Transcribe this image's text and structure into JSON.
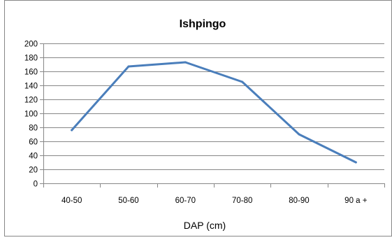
{
  "chart_data": {
    "type": "line",
    "title": "Ishpingo",
    "xlabel": "DAP (cm)",
    "ylabel": "",
    "categories": [
      "40-50",
      "50-60",
      "60-70",
      "70-80",
      "80-90",
      "90 a +"
    ],
    "series": [
      {
        "values": [
          76,
          167,
          173,
          145,
          70,
          30
        ],
        "color": "#4a7ebb"
      }
    ],
    "ylim": [
      0,
      200
    ],
    "yticks": [
      "0",
      "20",
      "40",
      "60",
      "80",
      "100",
      "120",
      "140",
      "160",
      "180",
      "200"
    ],
    "grid": true,
    "legend": "none",
    "colors": {
      "gridline": "#878787",
      "axis": "#878787",
      "border": "#878787"
    }
  }
}
